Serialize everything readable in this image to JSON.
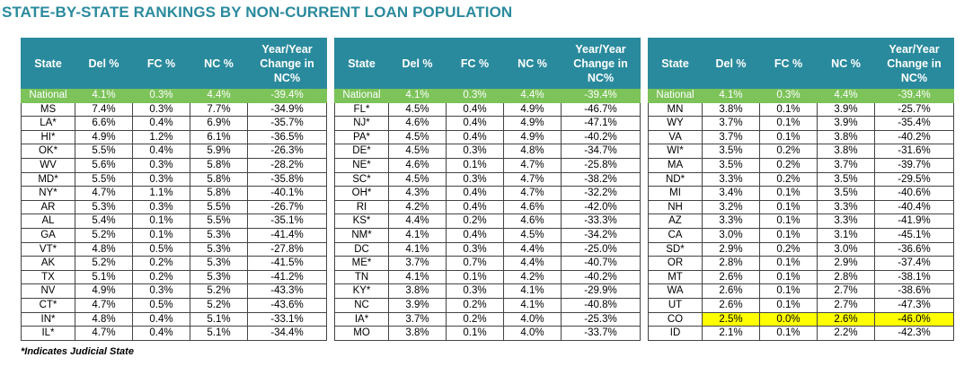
{
  "title": "STATE-BY-STATE RANKINGS BY NON-CURRENT LOAN POPULATION",
  "headers": [
    "State",
    "Del %",
    "FC %",
    "NC %",
    "Year/Year Change in NC%"
  ],
  "national": [
    "National",
    "4.1%",
    "0.3%",
    "4.4%",
    "-39.4%"
  ],
  "panels": [
    {
      "rows": [
        [
          "MS",
          "7.4%",
          "0.3%",
          "7.7%",
          "-34.9%"
        ],
        [
          "LA*",
          "6.6%",
          "0.4%",
          "6.9%",
          "-35.7%"
        ],
        [
          "HI*",
          "4.9%",
          "1.2%",
          "6.1%",
          "-36.5%"
        ],
        [
          "OK*",
          "5.5%",
          "0.4%",
          "5.9%",
          "-26.3%"
        ],
        [
          "WV",
          "5.6%",
          "0.3%",
          "5.8%",
          "-28.2%"
        ],
        [
          "MD*",
          "5.5%",
          "0.3%",
          "5.8%",
          "-35.8%"
        ],
        [
          "NY*",
          "4.7%",
          "1.1%",
          "5.8%",
          "-40.1%"
        ],
        [
          "AR",
          "5.3%",
          "0.3%",
          "5.5%",
          "-26.7%"
        ],
        [
          "AL",
          "5.4%",
          "0.1%",
          "5.5%",
          "-35.1%"
        ],
        [
          "GA",
          "5.2%",
          "0.1%",
          "5.3%",
          "-41.4%"
        ],
        [
          "VT*",
          "4.8%",
          "0.5%",
          "5.3%",
          "-27.8%"
        ],
        [
          "AK",
          "5.2%",
          "0.2%",
          "5.3%",
          "-41.5%"
        ],
        [
          "TX",
          "5.1%",
          "0.2%",
          "5.3%",
          "-41.2%"
        ],
        [
          "NV",
          "4.9%",
          "0.3%",
          "5.2%",
          "-43.3%"
        ],
        [
          "CT*",
          "4.7%",
          "0.5%",
          "5.2%",
          "-43.6%"
        ],
        [
          "IN*",
          "4.8%",
          "0.4%",
          "5.1%",
          "-33.1%"
        ],
        [
          "IL*",
          "4.7%",
          "0.4%",
          "5.1%",
          "-34.4%"
        ]
      ]
    },
    {
      "rows": [
        [
          "FL*",
          "4.5%",
          "0.4%",
          "4.9%",
          "-46.7%"
        ],
        [
          "NJ*",
          "4.6%",
          "0.4%",
          "4.9%",
          "-47.1%"
        ],
        [
          "PA*",
          "4.5%",
          "0.4%",
          "4.9%",
          "-40.2%"
        ],
        [
          "DE*",
          "4.5%",
          "0.3%",
          "4.8%",
          "-34.7%"
        ],
        [
          "NE*",
          "4.6%",
          "0.1%",
          "4.7%",
          "-25.8%"
        ],
        [
          "SC*",
          "4.5%",
          "0.3%",
          "4.7%",
          "-38.2%"
        ],
        [
          "OH*",
          "4.3%",
          "0.4%",
          "4.7%",
          "-32.2%"
        ],
        [
          "RI",
          "4.2%",
          "0.4%",
          "4.6%",
          "-42.0%"
        ],
        [
          "KS*",
          "4.4%",
          "0.2%",
          "4.6%",
          "-33.3%"
        ],
        [
          "NM*",
          "4.1%",
          "0.4%",
          "4.5%",
          "-34.2%"
        ],
        [
          "DC",
          "4.1%",
          "0.3%",
          "4.4%",
          "-25.0%"
        ],
        [
          "ME*",
          "3.7%",
          "0.7%",
          "4.4%",
          "-40.7%"
        ],
        [
          "TN",
          "4.1%",
          "0.1%",
          "4.2%",
          "-40.2%"
        ],
        [
          "KY*",
          "3.8%",
          "0.3%",
          "4.1%",
          "-29.9%"
        ],
        [
          "NC",
          "3.9%",
          "0.2%",
          "4.1%",
          "-40.8%"
        ],
        [
          "IA*",
          "3.7%",
          "0.2%",
          "4.0%",
          "-25.3%"
        ],
        [
          "MO",
          "3.8%",
          "0.1%",
          "4.0%",
          "-33.7%"
        ]
      ]
    },
    {
      "rows": [
        [
          "MN",
          "3.8%",
          "0.1%",
          "3.9%",
          "-25.7%"
        ],
        [
          "WY",
          "3.7%",
          "0.1%",
          "3.9%",
          "-35.4%"
        ],
        [
          "VA",
          "3.7%",
          "0.1%",
          "3.8%",
          "-40.2%"
        ],
        [
          "WI*",
          "3.5%",
          "0.2%",
          "3.8%",
          "-31.6%"
        ],
        [
          "MA",
          "3.5%",
          "0.2%",
          "3.7%",
          "-39.7%"
        ],
        [
          "ND*",
          "3.3%",
          "0.2%",
          "3.5%",
          "-29.5%"
        ],
        [
          "MI",
          "3.4%",
          "0.1%",
          "3.5%",
          "-40.6%"
        ],
        [
          "NH",
          "3.2%",
          "0.1%",
          "3.3%",
          "-40.4%"
        ],
        [
          "AZ",
          "3.3%",
          "0.1%",
          "3.3%",
          "-41.9%"
        ],
        [
          "CA",
          "3.0%",
          "0.1%",
          "3.1%",
          "-45.1%"
        ],
        [
          "SD*",
          "2.9%",
          "0.2%",
          "3.0%",
          "-36.6%"
        ],
        [
          "OR",
          "2.8%",
          "0.1%",
          "2.9%",
          "-37.4%"
        ],
        [
          "MT",
          "2.6%",
          "0.1%",
          "2.8%",
          "-38.1%"
        ],
        [
          "WA",
          "2.6%",
          "0.1%",
          "2.7%",
          "-38.6%"
        ],
        [
          "UT",
          "2.6%",
          "0.1%",
          "2.7%",
          "-47.3%"
        ],
        [
          "CO",
          "2.5%",
          "0.0%",
          "2.6%",
          "-46.0%"
        ],
        [
          "ID",
          "2.1%",
          "0.1%",
          "2.2%",
          "-42.3%"
        ]
      ],
      "highlight_row": 15
    }
  ],
  "colors": {
    "header": "#2a8a9d",
    "national": "#7cc35a",
    "highlight": "#ffff00"
  },
  "footnote": "*Indicates Judicial State"
}
